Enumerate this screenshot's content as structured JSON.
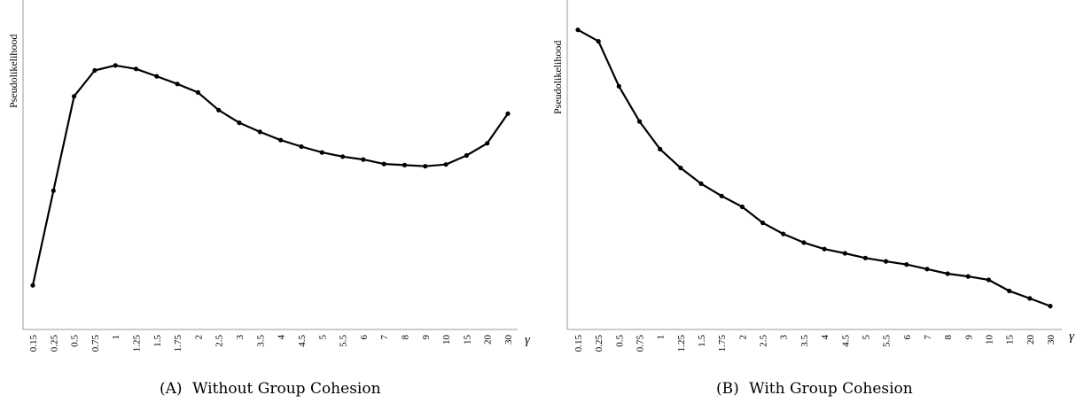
{
  "chart_data": [
    {
      "type": "line",
      "caption_tag": "(A)",
      "caption_text": "Without Group Cohesion",
      "ylabel": "Pseudolikelihood",
      "xlabel": "γ",
      "y_ticks_shown": false,
      "categories": [
        "0.15",
        "0.25",
        "0.5",
        "0.75",
        "1",
        "1.25",
        "1.5",
        "1.75",
        "2",
        "2.5",
        "3",
        "3.5",
        "4",
        "4.5",
        "5",
        "5.5",
        "6",
        "7",
        "8",
        "9",
        "10",
        "15",
        "20",
        "30"
      ],
      "ylim": [
        0,
        100
      ],
      "values": [
        15,
        47.2,
        79.3,
        88.1,
        89.8,
        88.6,
        86.1,
        83.5,
        80.6,
        74.6,
        70.3,
        67.2,
        64.4,
        62.2,
        60.2,
        58.8,
        57.8,
        56.3,
        55.9,
        55.5,
        56.1,
        59.2,
        63.3,
        73.4
      ],
      "grid": false,
      "legend": "none"
    },
    {
      "type": "line",
      "caption_tag": "(B)",
      "caption_text": "With Group Cohesion",
      "ylabel": "Pseudolikelihood",
      "xlabel": "γ",
      "y_ticks_shown": false,
      "categories": [
        "0.15",
        "0.25",
        "0.5",
        "0.75",
        "1",
        "1.25",
        "1.5",
        "1.75",
        "2",
        "2.5",
        "3",
        "3.5",
        "4",
        "4.5",
        "5",
        "5.5",
        "6",
        "7",
        "8",
        "9",
        "10",
        "15",
        "20",
        "30"
      ],
      "ylim": [
        0,
        100
      ],
      "values": [
        97.2,
        93.5,
        78.9,
        67.5,
        58.5,
        52.4,
        47.3,
        43.3,
        39.8,
        34.6,
        31.0,
        28.2,
        26.1,
        24.7,
        23.2,
        22.1,
        21.1,
        19.6,
        18.1,
        17.2,
        16.1,
        12.5,
        10.1,
        7.6
      ],
      "grid": false,
      "legend": "none"
    }
  ]
}
